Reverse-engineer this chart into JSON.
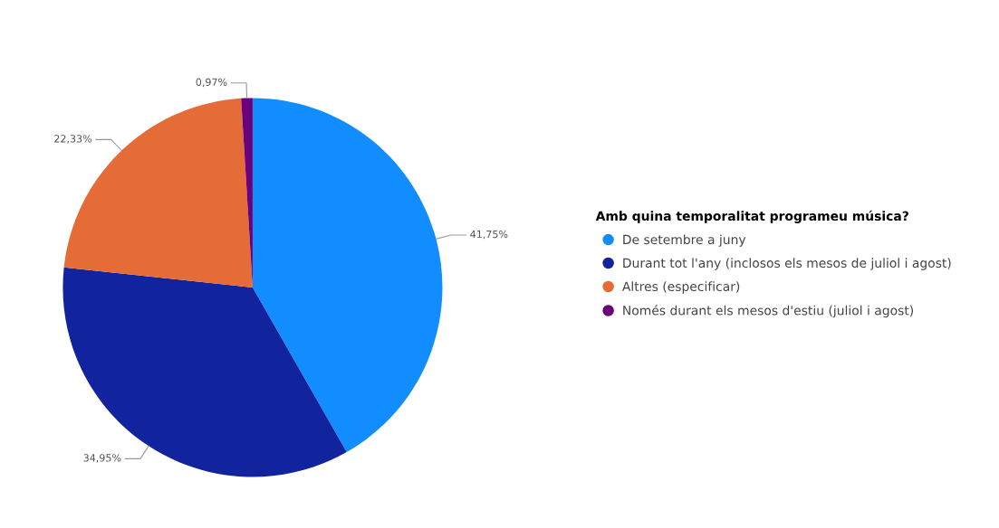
{
  "chart_data": {
    "type": "pie",
    "legend_title": "Amb quina temporalitat programeu música?",
    "categories": [
      "De setembre a juny",
      "Durant tot l'any (inclosos els mesos de juliol i agost)",
      "Altres (especificar)",
      "Només durant els mesos d'estiu (juliol i agost)"
    ],
    "values": [
      41.75,
      34.95,
      22.33,
      0.97
    ],
    "value_labels": [
      "41,75%",
      "34,95%",
      "22,33%",
      "0,97%"
    ],
    "colors": [
      "#118dff",
      "#12239e",
      "#e66c37",
      "#6b007b"
    ],
    "legend": "right"
  }
}
